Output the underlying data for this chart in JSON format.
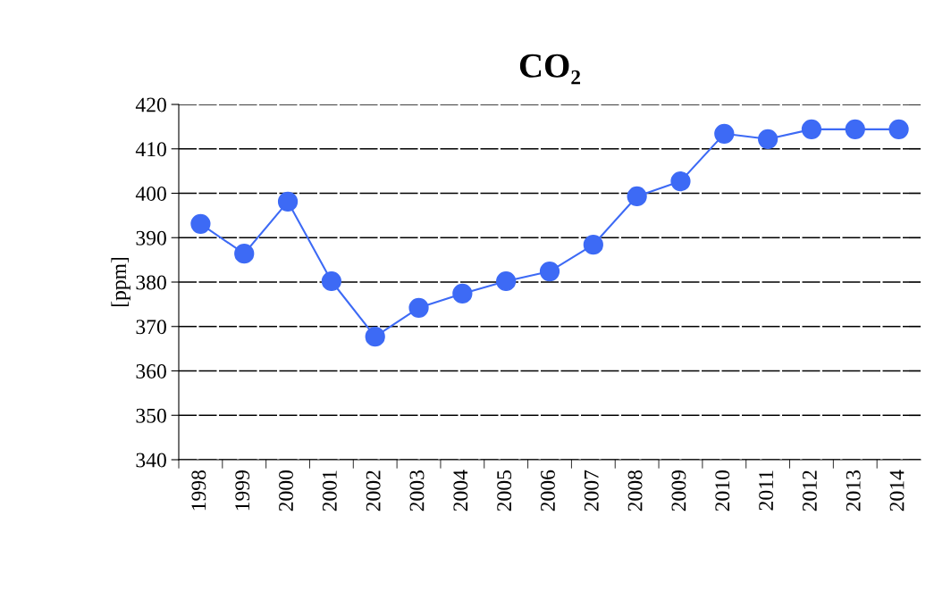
{
  "chart_data": {
    "type": "line",
    "title": "CO₂",
    "ylabel": "[ppm]",
    "categories": [
      "1998",
      "1999",
      "2000",
      "2001",
      "2002",
      "2003",
      "2004",
      "2005",
      "2006",
      "2007",
      "2008",
      "2009",
      "2010",
      "2011",
      "2012",
      "2013",
      "2014"
    ],
    "series": [
      {
        "color": "#3d6af5",
        "values": [
          393.1,
          386.4,
          398.1,
          380.2,
          367.7,
          374.2,
          377.4,
          380.2,
          382.4,
          388.4,
          399.3,
          402.7,
          413.4,
          412.2,
          414.4,
          414.4,
          414.4
        ]
      }
    ],
    "ylim": [
      340,
      420
    ],
    "yticks": [
      340,
      350,
      360,
      370,
      380,
      390,
      400,
      410,
      420
    ],
    "grid": "y",
    "marker": "circle",
    "line_style": "solid",
    "legend": false
  }
}
